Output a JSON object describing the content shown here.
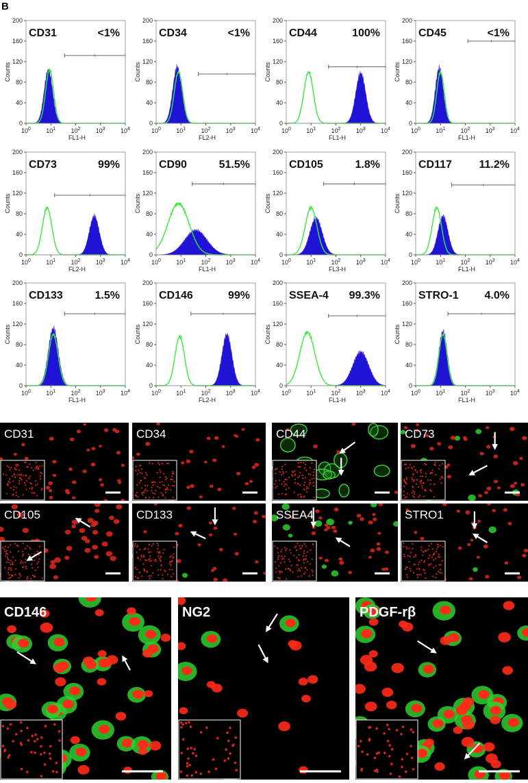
{
  "panel_letter": "B",
  "flow": {
    "y_label": "Counts",
    "yticks": [
      0,
      40,
      80,
      120,
      160,
      200
    ],
    "xtick_base": "10",
    "xtick_exponents": [
      "0",
      "1",
      "2",
      "3",
      "4"
    ],
    "panels": [
      {
        "marker": "CD31",
        "percent": "<1%",
        "channel": "FL1-H"
      },
      {
        "marker": "CD34",
        "percent": "<1%",
        "channel": "FL2-H"
      },
      {
        "marker": "CD44",
        "percent": "100%",
        "channel": "FL1-H"
      },
      {
        "marker": "CD45",
        "percent": "<1%",
        "channel": "FL1-H"
      },
      {
        "marker": "CD73",
        "percent": "99%",
        "channel": "FL2-H"
      },
      {
        "marker": "CD90",
        "percent": "51.5%",
        "channel": "FL1-H"
      },
      {
        "marker": "CD105",
        "percent": "1.8%",
        "channel": "FL3-H"
      },
      {
        "marker": "CD117",
        "percent": "11.2%",
        "channel": "FL1-H"
      },
      {
        "marker": "CD133",
        "percent": "1.5%",
        "channel": "FL1-H"
      },
      {
        "marker": "CD146",
        "percent": "99%",
        "channel": "FL2-H"
      },
      {
        "marker": "SSEA-4",
        "percent": "99.3%",
        "channel": "FL1-H"
      },
      {
        "marker": "STRO-1",
        "percent": "4.0%",
        "channel": "FL1-H"
      }
    ]
  },
  "if_images": [
    {
      "label": "CD31"
    },
    {
      "label": "CD34"
    },
    {
      "label": "CD44"
    },
    {
      "label": "CD73"
    },
    {
      "label": "CD105"
    },
    {
      "label": "CD133"
    },
    {
      "label": "SSEA4"
    },
    {
      "label": "STRO1"
    }
  ],
  "pericyte_images": [
    {
      "label": "CD146"
    },
    {
      "label": "NG2"
    },
    {
      "label": "PDGF-rβ"
    }
  ]
}
